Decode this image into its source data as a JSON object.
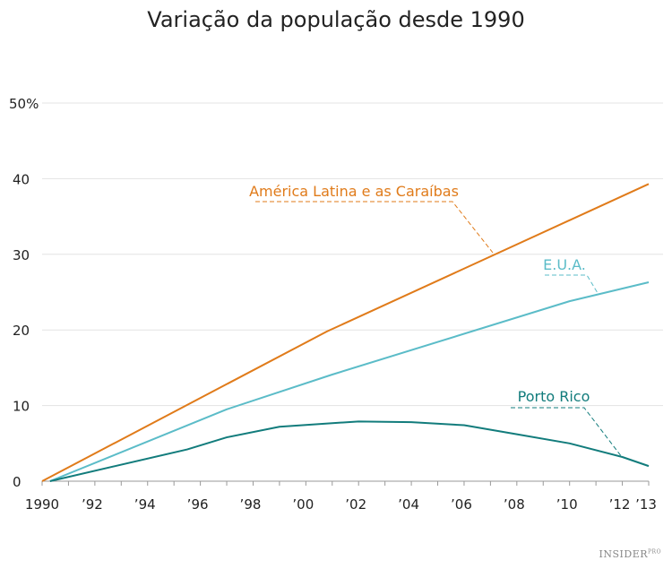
{
  "chart_data": {
    "type": "line",
    "title": "Variação da população desde 1990",
    "xlim": [
      1990,
      2013
    ],
    "ylim": [
      0,
      50
    ],
    "grid": true,
    "y_ticks": [
      {
        "v": 0,
        "label": "0"
      },
      {
        "v": 10,
        "label": "10"
      },
      {
        "v": 20,
        "label": "20"
      },
      {
        "v": 30,
        "label": "30"
      },
      {
        "v": 40,
        "label": "40"
      },
      {
        "v": 50,
        "label": "50%"
      }
    ],
    "x_ticks": [
      {
        "v": 1990,
        "label": "1990"
      },
      {
        "v": 1992,
        "label": "’92"
      },
      {
        "v": 1994,
        "label": "’94"
      },
      {
        "v": 1996,
        "label": "’96"
      },
      {
        "v": 1998,
        "label": "’98"
      },
      {
        "v": 2000,
        "label": "’00"
      },
      {
        "v": 2002,
        "label": "’02"
      },
      {
        "v": 2004,
        "label": "’04"
      },
      {
        "v": 2006,
        "label": "’06"
      },
      {
        "v": 2008,
        "label": "’08"
      },
      {
        "v": 2010,
        "label": "’10"
      },
      {
        "v": 2012,
        "label": "’12"
      },
      {
        "v": 2013,
        "label": "’13"
      }
    ],
    "series": [
      {
        "name": "América Latina e as Caraíbas",
        "color": "#e07b1a",
        "x": [
          1990,
          2000.8,
          2013
        ],
        "y": [
          0,
          19.8,
          39.3
        ]
      },
      {
        "name": "E.U.A.",
        "color": "#5bbcc8",
        "x": [
          1990.3,
          1997,
          2001,
          2010,
          2013
        ],
        "y": [
          0,
          9.5,
          14.1,
          23.8,
          26.3
        ]
      },
      {
        "name": "Porto Rico",
        "color": "#127c7c",
        "x": [
          1990.3,
          1995.5,
          1997,
          1999,
          2002,
          2004,
          2006,
          2008,
          2010,
          2012,
          2013
        ],
        "y": [
          0,
          4.2,
          5.8,
          7.2,
          7.9,
          7.8,
          7.4,
          6.2,
          5.0,
          3.2,
          2.0
        ]
      }
    ]
  },
  "logo": {
    "text": "INSIDER",
    "sup": "PRO"
  }
}
